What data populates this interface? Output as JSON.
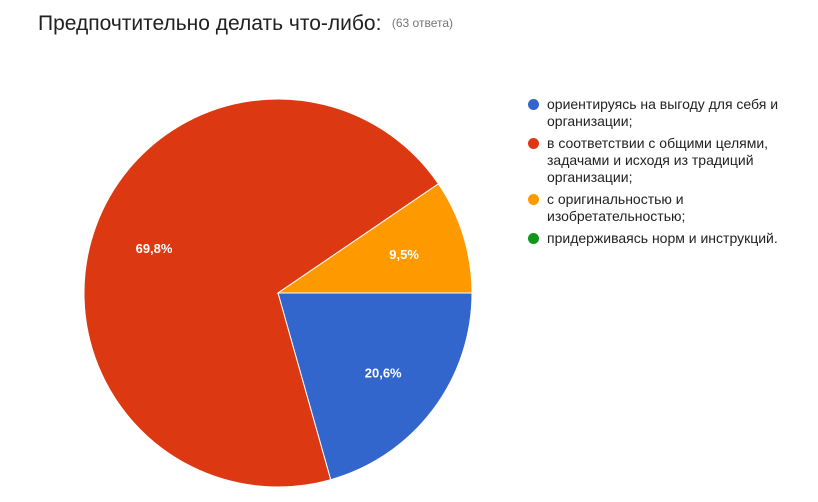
{
  "header": {
    "title": "Предпочтительно делать что-либо:",
    "response_count": "(63 ответа)"
  },
  "colors": {
    "blue": "#3366cc",
    "red": "#dc3912",
    "orange": "#ff9900",
    "green": "#109618"
  },
  "chart_data": {
    "type": "pie",
    "title": "Предпочтительно делать что-либо:",
    "subtitle": "(63 ответа)",
    "legend_position": "right",
    "slices": [
      {
        "label": "ориентируясь на выгоду для себя и организации;",
        "value": 20.6,
        "value_label": "20,6%",
        "color": "#3366cc"
      },
      {
        "label": "в соответствии с общими целями, задачами и исходя из традиций организации;",
        "value": 69.8,
        "value_label": "69,8%",
        "color": "#dc3912"
      },
      {
        "label": "с оригинальностью и изобретательностью;",
        "value": 9.5,
        "value_label": "9,5%",
        "color": "#ff9900"
      },
      {
        "label": "придерживаясь норм и инструкций.",
        "value": 0,
        "value_label": "",
        "color": "#109618"
      }
    ]
  }
}
